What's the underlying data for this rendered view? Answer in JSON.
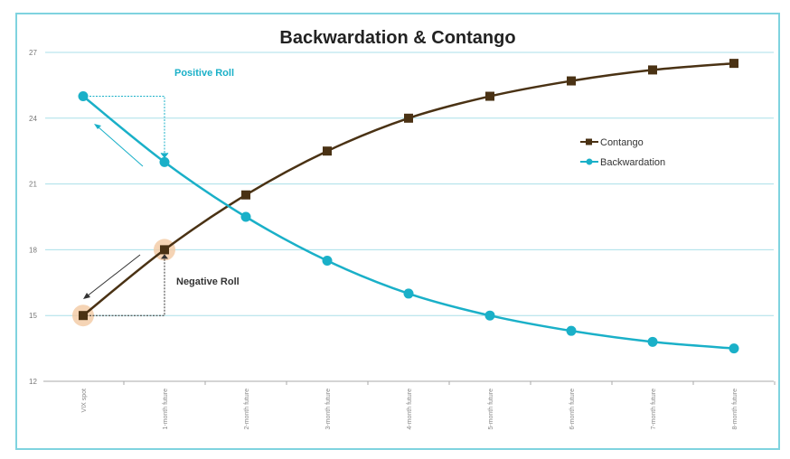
{
  "chart_data": {
    "type": "line",
    "title": "Backwardation & Contango",
    "categories": [
      "VIX spot",
      "1-month future",
      "2-month future",
      "3-month future",
      "4-month future",
      "5-month future",
      "6-month future",
      "7-month future",
      "8-month future"
    ],
    "series": [
      {
        "name": "Contango",
        "color": "#4a3214",
        "marker": "square",
        "values": [
          15,
          18,
          20.5,
          22.5,
          24,
          25,
          25.7,
          26.2,
          26.5
        ]
      },
      {
        "name": "Backwardation",
        "color": "#1ab0c8",
        "marker": "circle",
        "values": [
          25,
          22,
          19.5,
          17.5,
          16,
          15,
          14.3,
          13.8,
          13.5
        ]
      }
    ],
    "ylim": [
      12,
      27
    ],
    "yticks": [
      12,
      15,
      18,
      21,
      24,
      27
    ],
    "grid": true,
    "legend_position": "right",
    "annotations": {
      "positive_roll": "Positive Roll",
      "negative_roll": "Negative Roll"
    },
    "frame_color": "#5cc8d8"
  }
}
